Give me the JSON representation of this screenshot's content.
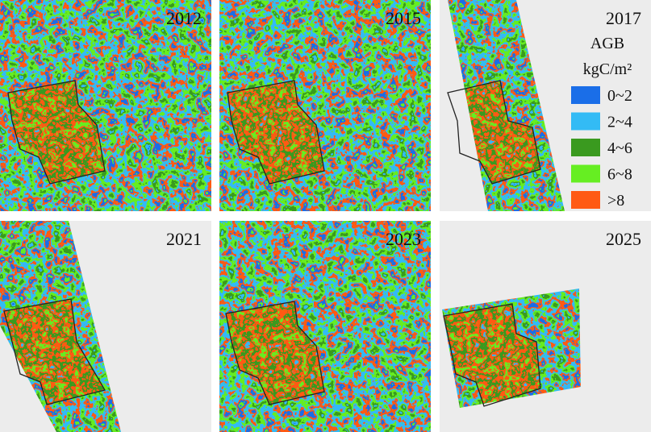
{
  "panels": [
    {
      "label": "2012"
    },
    {
      "label": "2015"
    },
    {
      "label": "2017"
    },
    {
      "label": "2021"
    },
    {
      "label": "2023"
    },
    {
      "label": "2025"
    }
  ],
  "legend": {
    "title": "AGB",
    "unit": "kgC/m²",
    "items": [
      {
        "label": "0~2",
        "color": "#1a6ee8"
      },
      {
        "label": "2~4",
        "color": "#33bbf5"
      },
      {
        "label": "4~6",
        "color": "#3a9a1f"
      },
      {
        "label": "6~8",
        "color": "#66ee22"
      },
      {
        "label": ">8",
        "color": "#ff5a14"
      }
    ]
  }
}
